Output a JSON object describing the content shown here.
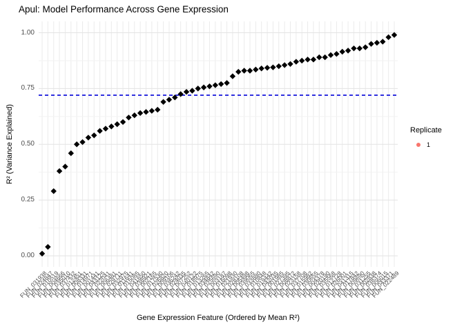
{
  "title": "Apul: Model Performance Across Gene Expression",
  "y_axis": {
    "label": "R² (Variance Explained)",
    "tick_labels": [
      "1.00",
      "0.75",
      "0.50",
      "0.25",
      "0.00"
    ],
    "tick_values": [
      1.0,
      0.75,
      0.5,
      0.25,
      0.0
    ]
  },
  "x_axis": {
    "label": "Gene Expression Feature (Ordered by Mean R²)"
  },
  "legend": {
    "title": "Replicate",
    "items": [
      {
        "label": "1",
        "color": "#F8766D"
      }
    ]
  },
  "chart_data": {
    "type": "scatter",
    "title": "Apul: Model Performance Across Gene Expression",
    "xlabel": "Gene Expression Feature (Ordered by Mean R²)",
    "ylabel": "R² (Variance Explained)",
    "ylim": [
      -0.05,
      1.05
    ],
    "y_ticks": [
      0,
      0.25,
      0.5,
      0.75,
      1.0
    ],
    "y_minor_ticks": [
      0.125,
      0.375,
      0.625,
      0.875
    ],
    "grid": true,
    "legend_position": "right",
    "point_shape": "diamond",
    "point_color": "#000000",
    "hline": {
      "value": 0.72,
      "color": "#2222DD",
      "style": "dashed"
    },
    "categories": [
      "FUN_031938",
      "FUN_024847",
      "FUN_010519",
      "FUN_004666",
      "FUN_035010",
      "FUN_037432",
      "FUN_012451",
      "FUN_008331",
      "FUN_014971",
      "FUN_001441",
      "FUN_043125",
      "FUN_022041",
      "FUN_006481",
      "FUN_029711",
      "FUN_032975",
      "FUN_011641",
      "FUN_015085",
      "FUN_041650",
      "FUN_038921",
      "FUN_002165",
      "FUN_017530",
      "FUN_026820",
      "FUN_009106",
      "FUN_036242",
      "FUN_024035",
      "FUN_007252",
      "FUN_040122",
      "FUN_018975",
      "FUN_013265",
      "FUN_034842",
      "FUN_025690",
      "FUN_003187",
      "FUN_016098",
      "FUN_021930",
      "FUN_028108",
      "FUN_005498",
      "FUN_039065",
      "FUN_033880",
      "FUN_010848",
      "FUN_019442",
      "FUN_042035",
      "FUN_001985",
      "FUN_027395",
      "FUN_008872",
      "FUN_023158",
      "FUN_037708",
      "FUN_015982",
      "FUN_030655",
      "FUN_004378",
      "FUN_020190",
      "FUN_035568",
      "FUN_012728",
      "FUN_026001",
      "FUN_041315",
      "FUN_017842",
      "FUN_009690",
      "FUN_031255",
      "FUN_002838",
      "FUN_038374",
      "FUN_006015",
      "FUN_043371",
      "FUN_022489"
    ],
    "values": [
      0.01,
      0.04,
      0.29,
      0.38,
      0.4,
      0.46,
      0.5,
      0.51,
      0.53,
      0.54,
      0.56,
      0.57,
      0.58,
      0.59,
      0.6,
      0.62,
      0.63,
      0.64,
      0.645,
      0.65,
      0.655,
      0.69,
      0.7,
      0.71,
      0.725,
      0.735,
      0.74,
      0.75,
      0.755,
      0.76,
      0.765,
      0.77,
      0.775,
      0.805,
      0.825,
      0.83,
      0.83,
      0.835,
      0.84,
      0.843,
      0.845,
      0.85,
      0.855,
      0.86,
      0.87,
      0.875,
      0.88,
      0.88,
      0.89,
      0.89,
      0.9,
      0.905,
      0.915,
      0.92,
      0.93,
      0.93,
      0.935,
      0.95,
      0.955,
      0.96,
      0.98,
      0.99
    ]
  }
}
